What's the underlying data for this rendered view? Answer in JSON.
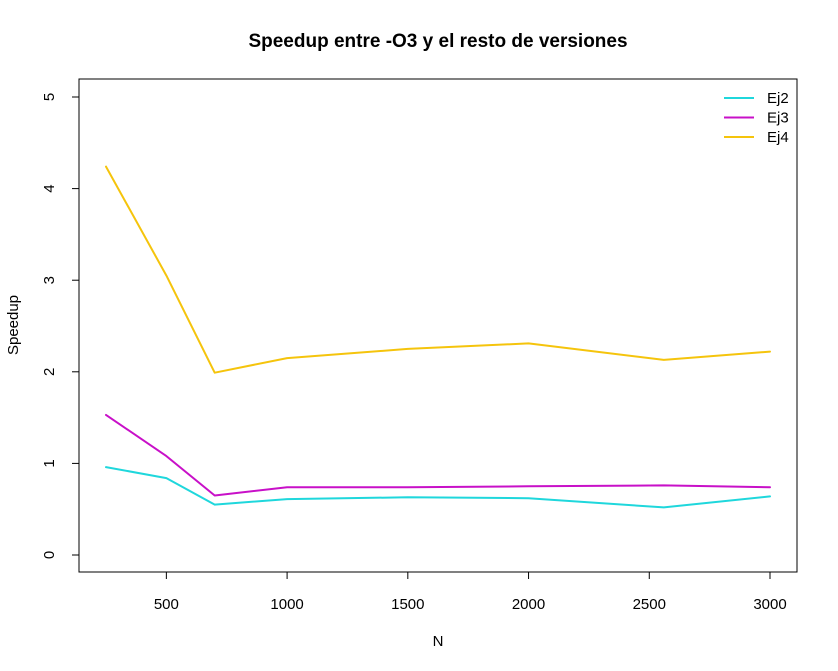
{
  "chart_data": {
    "type": "line",
    "title": "Speedup entre -O3 y el resto de versiones",
    "xlabel": "N",
    "ylabel": "Speedup",
    "xlim": [
      250,
      3000
    ],
    "ylim": [
      0,
      5
    ],
    "x_ticks": [
      500,
      1000,
      1500,
      2000,
      2500,
      3000
    ],
    "y_ticks": [
      0,
      1,
      2,
      3,
      4,
      5
    ],
    "x": [
      250,
      500,
      700,
      1000,
      1500,
      2000,
      2560,
      3000
    ],
    "legend_position": "top-right",
    "grid": false,
    "series": [
      {
        "name": "Ej2",
        "color": "#1fd7dc",
        "values": [
          0.96,
          0.84,
          0.55,
          0.61,
          0.63,
          0.62,
          0.52,
          0.64
        ]
      },
      {
        "name": "Ej3",
        "color": "#c810c8",
        "values": [
          1.53,
          1.08,
          0.65,
          0.74,
          0.74,
          0.75,
          0.76,
          0.74
        ]
      },
      {
        "name": "Ej4",
        "color": "#f5c40c",
        "values": [
          4.24,
          3.05,
          1.99,
          2.15,
          2.25,
          2.31,
          2.13,
          2.22
        ]
      }
    ]
  }
}
